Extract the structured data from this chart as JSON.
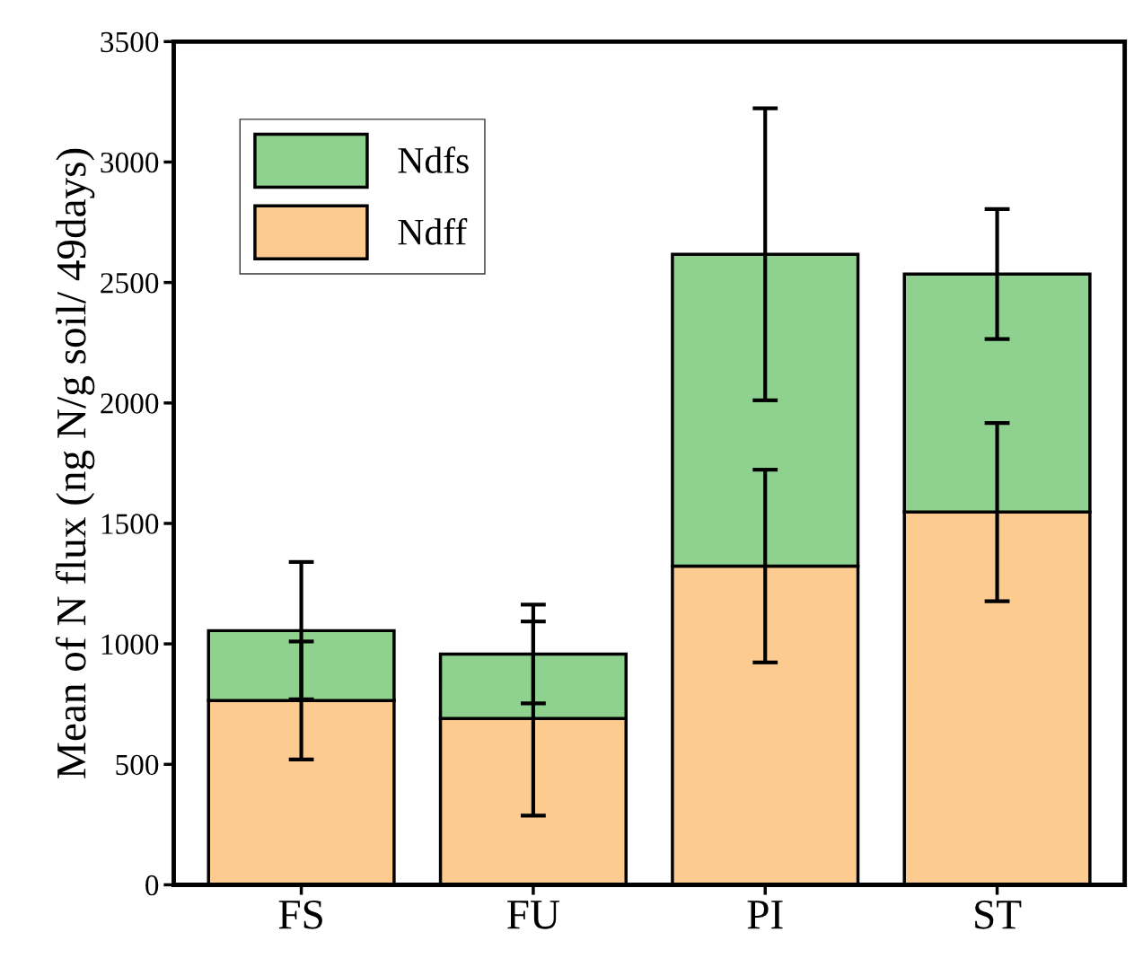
{
  "chart_data": {
    "type": "bar",
    "stacked": true,
    "ylabel": "Mean of N flux (ng N/g soil/ 49days)",
    "categories": [
      "FS",
      "FU",
      "PI",
      "ST"
    ],
    "series": [
      {
        "name": "Ndff",
        "color": "#fdca8f",
        "values": [
          765,
          690,
          1323,
          1547
        ],
        "errors": [
          245,
          403,
          400,
          370
        ]
      },
      {
        "name": "Ndfs",
        "color": "#8fd18f",
        "values": [
          290,
          268,
          1294,
          988
        ],
        "errors": [
          285,
          205,
          606,
          270
        ]
      }
    ],
    "ylim": [
      0,
      3500
    ],
    "yticks": [
      0,
      500,
      1000,
      1500,
      2000,
      2500,
      3000,
      3500
    ],
    "legend": "top left",
    "grid": false
  }
}
